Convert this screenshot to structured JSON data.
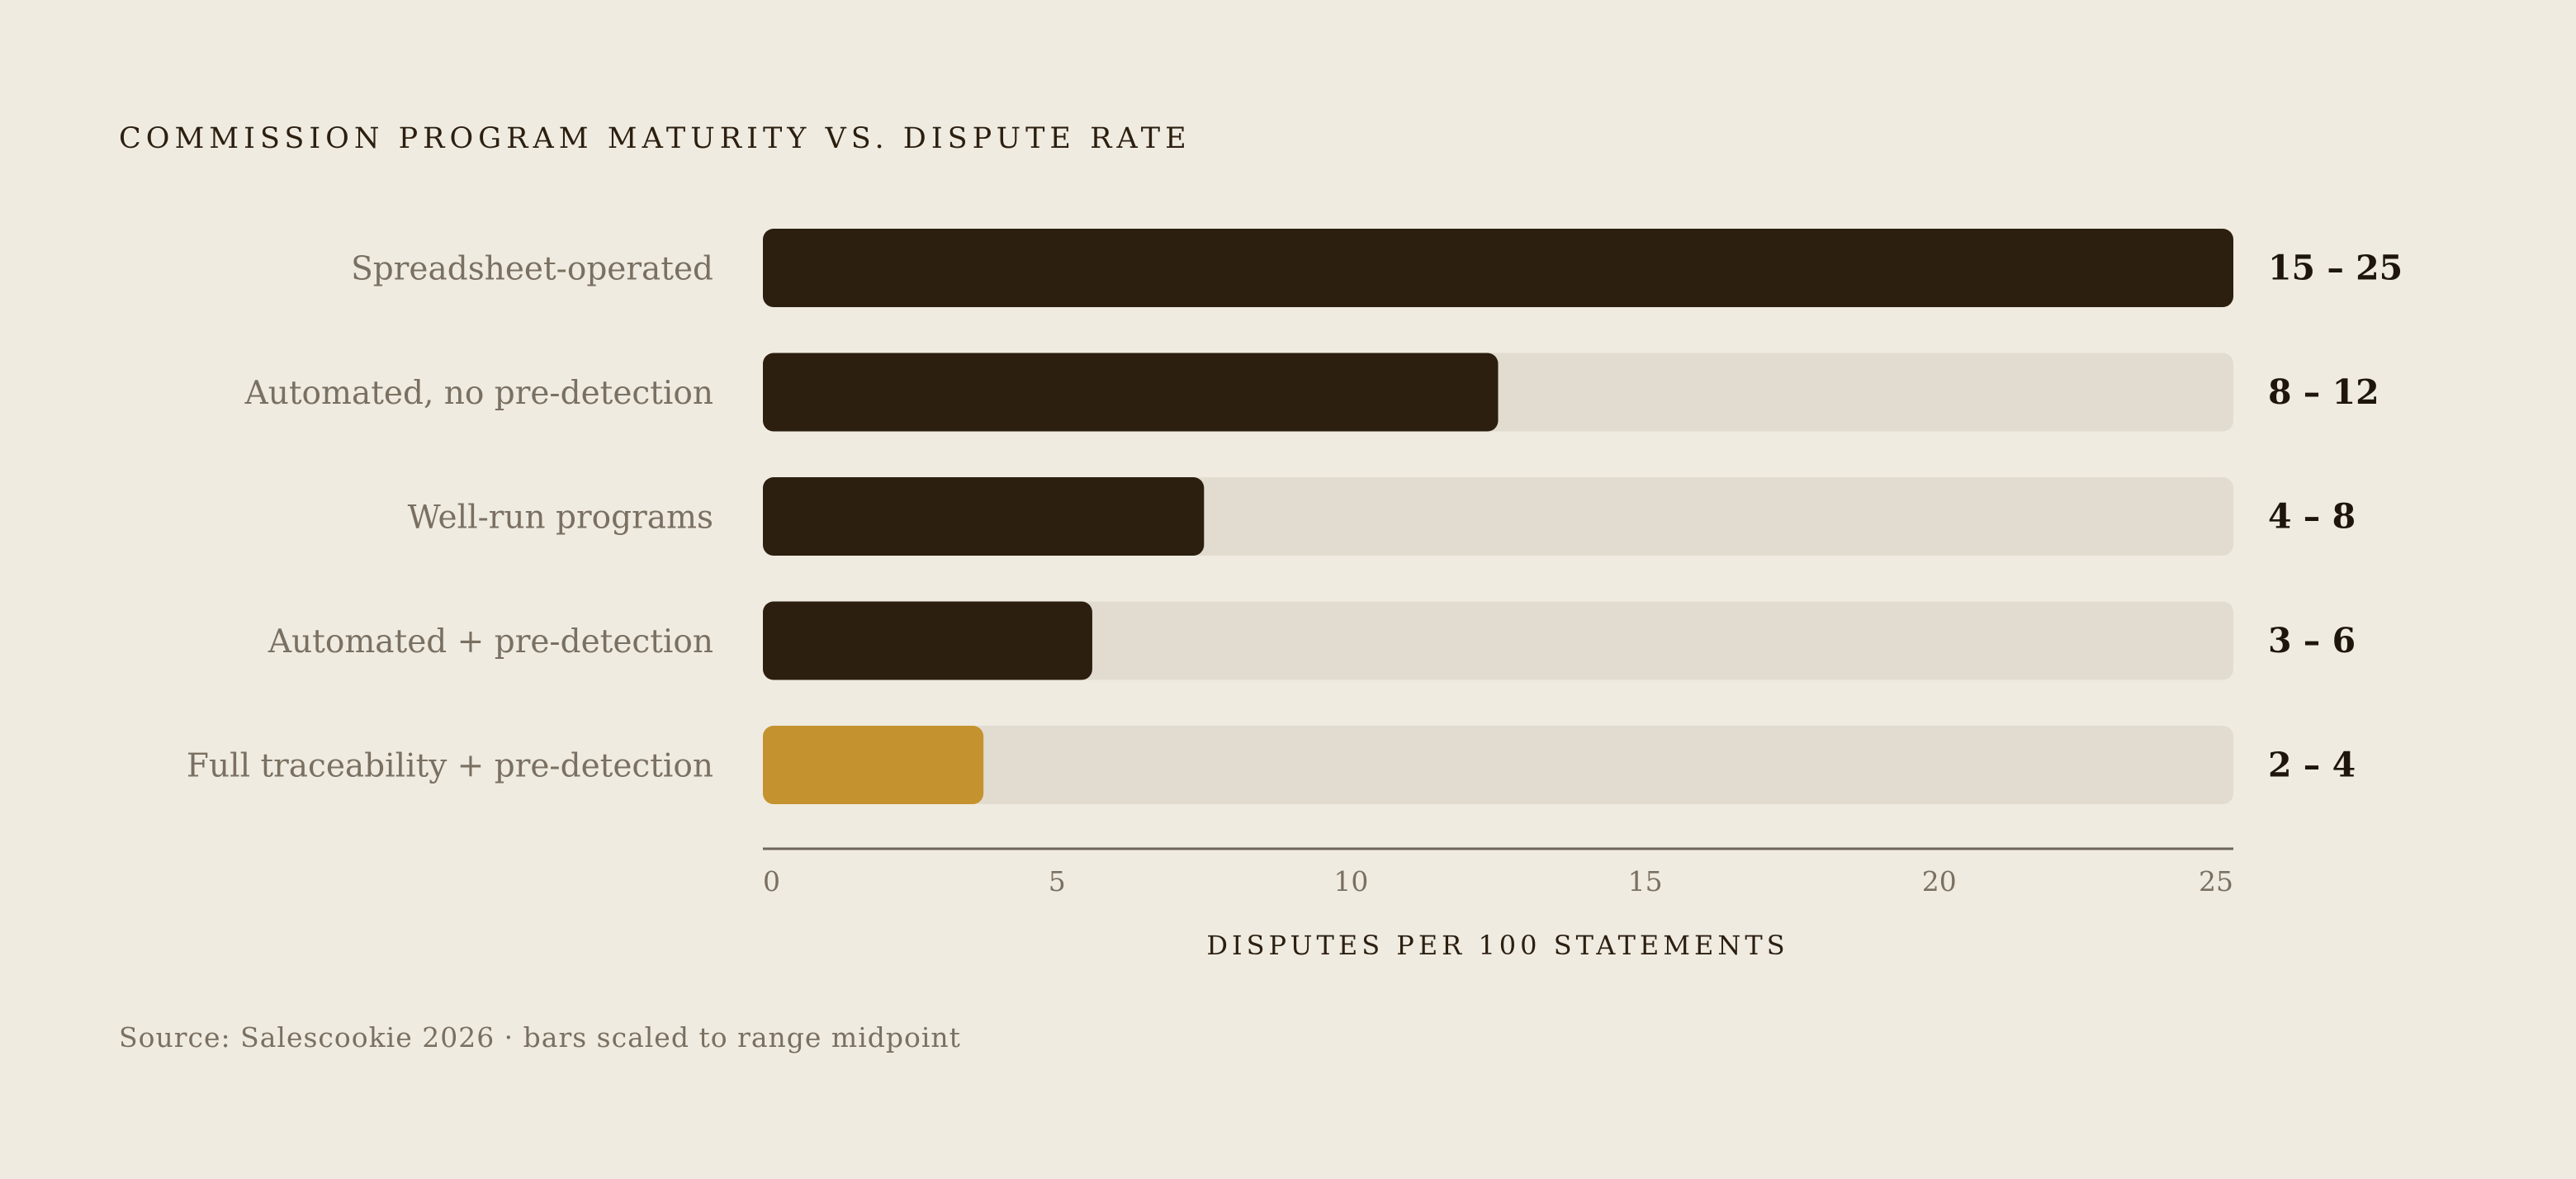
{
  "chart_data": {
    "type": "bar",
    "orientation": "horizontal",
    "title": "COMMISSION PROGRAM MATURITY VS. DISPUTE RATE",
    "xlabel": "DISPUTES PER 100 STATEMENTS",
    "ylabel": "",
    "xlim": [
      0,
      25
    ],
    "ticks": [
      0,
      5,
      10,
      15,
      20,
      25
    ],
    "grid": false,
    "categories": [
      "Spreadsheet-operated",
      "Automated, no pre-detection",
      "Well-run programs",
      "Automated + pre-detection",
      "Full traceability + pre-detection"
    ],
    "values": [
      25,
      12.5,
      7.5,
      5.6,
      3.75
    ],
    "range_labels": [
      "15 – 25",
      "8 – 12",
      "4 – 8",
      "3 – 6",
      "2 – 4"
    ],
    "highlight_index": 4,
    "source": "Source: Salescookie 2026 · bars scaled to range midpoint"
  },
  "colors": {
    "background": "#EFEBE0",
    "bar": "#2C1F10",
    "highlight": "#C4922E",
    "track": "#E2DCD0",
    "axis": "#6E665A"
  }
}
